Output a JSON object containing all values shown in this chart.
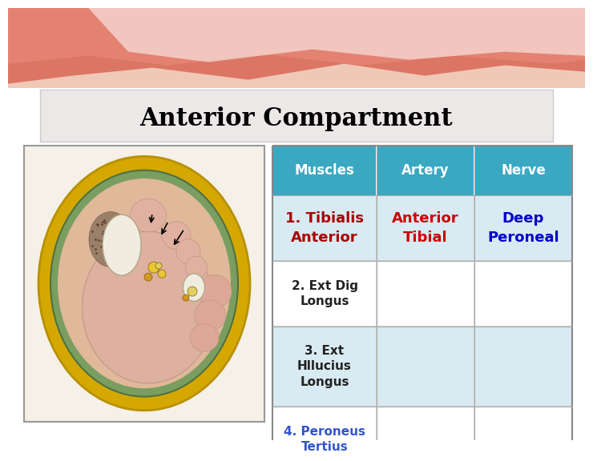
{
  "title": "Anterior Compartment",
  "title_fontsize": 22,
  "title_color": "#000000",
  "bg_color": "#ffffff",
  "header_bg": "#3aa8c1",
  "header_text_color": "#ffffff",
  "header_labels": [
    "Muscles",
    "Artery",
    "Nerve"
  ],
  "rows": [
    {
      "muscles": "1. Tibialis\nAnterior",
      "muscles_color": "#aa0000",
      "artery": "Anterior\nTibial",
      "artery_color": "#cc0000",
      "nerve": "Deep\nPeroneal",
      "nerve_color": "#0000cc",
      "row_bg": "#d8eaf2"
    },
    {
      "muscles": "2. Ext Dig\nLongus",
      "muscles_color": "#222222",
      "artery": "",
      "artery_color": "#000000",
      "nerve": "",
      "nerve_color": "#000000",
      "row_bg": "#ffffff"
    },
    {
      "muscles": "3. Ext\nHllucius\nLongus",
      "muscles_color": "#222222",
      "artery": "",
      "artery_color": "#000000",
      "nerve": "",
      "nerve_color": "#000000",
      "row_bg": "#d8eaf2"
    },
    {
      "muscles": "4. Peroneus\nTertius",
      "muscles_color": "#3355cc",
      "artery": "",
      "artery_color": "#000000",
      "nerve": "",
      "nerve_color": "#000000",
      "row_bg": "#ffffff"
    }
  ],
  "wave_color1": "#e07060",
  "wave_color2": "#e89080",
  "wave_color3": "#f0b0a0",
  "title_box_bg": "#ede8e8",
  "title_box_edge": "#cccccc"
}
